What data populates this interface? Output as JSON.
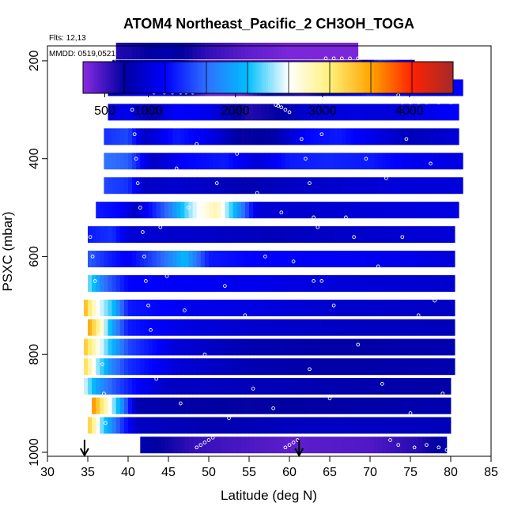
{
  "chart_data": {
    "type": "heatmap",
    "title": "ATOM4 Northeast_Pacific_2 CH3OH_TOGA",
    "flights_label": "Flts: 12,13",
    "dates_label": "MMDD: 0519,0521",
    "xlabel": "Latitude (deg N)",
    "ylabel": "PSXC (mbar)",
    "xlim": [
      30,
      85
    ],
    "ylim": [
      1000,
      100
    ],
    "x_ticks": [
      "30",
      "35",
      "40",
      "45",
      "50",
      "55",
      "60",
      "65",
      "70",
      "75",
      "80",
      "85"
    ],
    "y_ticks": [
      "200",
      "400",
      "600",
      "800",
      "1000"
    ],
    "colorbar": {
      "range": [
        250,
        4500
      ],
      "ticks": [
        "500",
        "1000",
        "2000",
        "3000",
        "4000"
      ],
      "colors": [
        "#8a2be2",
        "#0000a0",
        "#0000ff",
        "#2f6fff",
        "#00bfff",
        "#ffffff",
        "#fff07a",
        "#ffa500",
        "#ff2200",
        "#a52a2a"
      ]
    },
    "flight_start_markers": [
      34.6,
      61.2
    ],
    "rows": [
      {
        "p": 985,
        "lat0": 41.5,
        "lat1": 79.5,
        "stops": [
          [
            41.5,
            800
          ],
          [
            48,
            550
          ],
          [
            60,
            400
          ],
          [
            70,
            450
          ],
          [
            76,
            600
          ],
          [
            79.5,
            800
          ]
        ]
      },
      {
        "p": 945,
        "lat0": 35.0,
        "lat1": 80.0,
        "stops": [
          [
            35,
            3400
          ],
          [
            37,
            2200
          ],
          [
            39,
            1500
          ],
          [
            41,
            900
          ],
          [
            50,
            800
          ],
          [
            65,
            900
          ],
          [
            80,
            850
          ]
        ]
      },
      {
        "p": 905,
        "lat0": 35.5,
        "lat1": 80.0,
        "stops": [
          [
            35.5,
            3700
          ],
          [
            37,
            3000
          ],
          [
            39,
            2000
          ],
          [
            41,
            800
          ],
          [
            55,
            700
          ],
          [
            65,
            750
          ],
          [
            80,
            800
          ]
        ]
      },
      {
        "p": 865,
        "lat0": 34.5,
        "lat1": 80.0,
        "stops": [
          [
            34.5,
            2600
          ],
          [
            36,
            2000
          ],
          [
            38,
            1600
          ],
          [
            41,
            1200
          ],
          [
            45,
            900
          ],
          [
            55,
            850
          ],
          [
            65,
            800
          ],
          [
            80,
            750
          ]
        ]
      },
      {
        "p": 825,
        "lat0": 34.5,
        "lat1": 80.5,
        "stops": [
          [
            34.5,
            3300
          ],
          [
            36,
            2500
          ],
          [
            38,
            1800
          ],
          [
            40,
            1400
          ],
          [
            46,
            1000
          ],
          [
            56,
            800
          ],
          [
            66,
            750
          ],
          [
            80.5,
            800
          ]
        ]
      },
      {
        "p": 785,
        "lat0": 34.5,
        "lat1": 80.5,
        "stops": [
          [
            34.5,
            3400
          ],
          [
            36,
            2800
          ],
          [
            38,
            2100
          ],
          [
            40,
            1500
          ],
          [
            46,
            1000
          ],
          [
            55,
            800
          ],
          [
            66,
            750
          ],
          [
            80.5,
            800
          ]
        ]
      },
      {
        "p": 745,
        "lat0": 35.0,
        "lat1": 80.5,
        "stops": [
          [
            35,
            3600
          ],
          [
            36.5,
            2900
          ],
          [
            38,
            2000
          ],
          [
            40,
            1300
          ],
          [
            47,
            1050
          ],
          [
            55,
            950
          ],
          [
            66,
            900
          ],
          [
            80.5,
            850
          ]
        ]
      },
      {
        "p": 705,
        "lat0": 34.5,
        "lat1": 80.5,
        "stops": [
          [
            34.5,
            3500
          ],
          [
            36,
            2700
          ],
          [
            38,
            2200
          ],
          [
            40,
            1300
          ],
          [
            48,
            1100
          ],
          [
            56,
            1050
          ],
          [
            66,
            950
          ],
          [
            80.5,
            900
          ]
        ]
      },
      {
        "p": 655,
        "lat0": 35.0,
        "lat1": 80.5,
        "stops": [
          [
            35,
            2400
          ],
          [
            37,
            1700
          ],
          [
            40,
            1200
          ],
          [
            48,
            1150
          ],
          [
            56,
            1100
          ],
          [
            66,
            1000
          ],
          [
            80.5,
            950
          ]
        ]
      },
      {
        "p": 605,
        "lat0": 35.0,
        "lat1": 80.5,
        "stops": [
          [
            35,
            1600
          ],
          [
            38,
            1300
          ],
          [
            40,
            1150
          ],
          [
            44,
            1600
          ],
          [
            47,
            2100
          ],
          [
            50,
            1300
          ],
          [
            55,
            1200
          ],
          [
            65,
            1150
          ],
          [
            75,
            1100
          ],
          [
            80.5,
            1000
          ]
        ]
      },
      {
        "p": 555,
        "lat0": 35.0,
        "lat1": 80.5,
        "stops": [
          [
            35,
            1300
          ],
          [
            38,
            1400
          ],
          [
            40,
            1000
          ],
          [
            45,
            950
          ],
          [
            52,
            900
          ],
          [
            58,
            850
          ],
          [
            64,
            900
          ],
          [
            72,
            950
          ],
          [
            80.5,
            1000
          ]
        ]
      },
      {
        "p": 505,
        "lat0": 36.0,
        "lat1": 81.0,
        "stops": [
          [
            36,
            1300
          ],
          [
            39,
            1200
          ],
          [
            41,
            900
          ],
          [
            45,
            1700
          ],
          [
            48,
            2500
          ],
          [
            51,
            2900
          ],
          [
            54,
            1800
          ],
          [
            56,
            1000
          ],
          [
            62,
            950
          ],
          [
            70,
            1000
          ],
          [
            81,
            1050
          ]
        ]
      },
      {
        "p": 455,
        "lat0": 37.0,
        "lat1": 81.5,
        "stops": [
          [
            37,
            1500
          ],
          [
            40,
            1400
          ],
          [
            42,
            900
          ],
          [
            46,
            950
          ],
          [
            50,
            900
          ],
          [
            55,
            800
          ],
          [
            60,
            900
          ],
          [
            66,
            950
          ],
          [
            72,
            1000
          ],
          [
            81.5,
            1000
          ]
        ]
      },
      {
        "p": 405,
        "lat0": 37.0,
        "lat1": 81.5,
        "stops": [
          [
            37,
            1700
          ],
          [
            40,
            1600
          ],
          [
            43,
            900
          ],
          [
            47,
            1200
          ],
          [
            52,
            1300
          ],
          [
            56,
            1000
          ],
          [
            60,
            1300
          ],
          [
            65,
            1350
          ],
          [
            70,
            1300
          ],
          [
            76,
            1100
          ],
          [
            81.5,
            1050
          ]
        ]
      },
      {
        "p": 355,
        "lat0": 37.0,
        "lat1": 81.0,
        "stops": [
          [
            37,
            1400
          ],
          [
            40,
            1500
          ],
          [
            42,
            900
          ],
          [
            46,
            1300
          ],
          [
            50,
            1100
          ],
          [
            54,
            700
          ],
          [
            58,
            750
          ],
          [
            62,
            1200
          ],
          [
            66,
            1300
          ],
          [
            70,
            1100
          ],
          [
            75,
            850
          ],
          [
            81,
            1000
          ]
        ]
      },
      {
        "p": 305,
        "lat0": 37.5,
        "lat1": 81.0,
        "stops": [
          [
            37.5,
            1000
          ],
          [
            40,
            1100
          ],
          [
            43,
            800
          ],
          [
            46,
            1200
          ],
          [
            50,
            1100
          ],
          [
            55,
            600
          ],
          [
            58,
            700
          ],
          [
            63,
            1000
          ],
          [
            68,
            1050
          ],
          [
            73,
            1000
          ],
          [
            77,
            1100
          ],
          [
            81,
            1200
          ]
        ]
      },
      {
        "p": 255,
        "lat0": 37.5,
        "lat1": 81.5,
        "stops": [
          [
            37.5,
            800
          ],
          [
            40,
            1000
          ],
          [
            42,
            1200
          ],
          [
            45,
            1000
          ],
          [
            50,
            350
          ],
          [
            54,
            350
          ],
          [
            57,
            700
          ],
          [
            62,
            600
          ],
          [
            66,
            900
          ],
          [
            70,
            1300
          ],
          [
            74,
            1100
          ],
          [
            78,
            1000
          ],
          [
            81.5,
            1200
          ]
        ]
      },
      {
        "p": 215,
        "lat0": 38.0,
        "lat1": 75.5,
        "stops": [
          [
            38,
            800
          ],
          [
            41,
            1000
          ],
          [
            45,
            900
          ],
          [
            49,
            350
          ],
          [
            55,
            350
          ],
          [
            60,
            450
          ],
          [
            66,
            400
          ],
          [
            69,
            600
          ],
          [
            71,
            1500
          ],
          [
            73,
            1300
          ],
          [
            75.5,
            900
          ]
        ]
      },
      {
        "p": 180,
        "lat0": 38.5,
        "lat1": 68.5,
        "stops": [
          [
            38.5,
            600
          ],
          [
            42,
            700
          ],
          [
            45,
            800
          ],
          [
            50,
            550
          ],
          [
            55,
            400
          ],
          [
            60,
            300
          ],
          [
            68.5,
            300
          ]
        ]
      }
    ],
    "sample_tracks": [
      {
        "lat": [
          38.2,
          39.2,
          40.0,
          40.6,
          41.3,
          41.8,
          42.3,
          42.8,
          43.2
        ],
        "p": [
          200,
          205,
          210,
          220,
          230,
          240,
          250,
          260,
          265
        ]
      },
      {
        "lat": [
          44.5,
          45.5,
          46.5,
          47.2,
          48.0
        ],
        "p": [
          265,
          265,
          265,
          265,
          265
        ]
      },
      {
        "lat": [
          58.3,
          58.6,
          59.0,
          59.5,
          60.0
        ],
        "p": [
          290,
          292,
          295,
          300,
          305
        ]
      },
      {
        "lat": [
          64.5,
          65.5,
          66.5,
          67.5,
          68.5
        ],
        "p": [
          195,
          195,
          195,
          195,
          195
        ]
      },
      {
        "lat": [
          68.8,
          69.3,
          69.8,
          70.5,
          71.5,
          72.5,
          73.5
        ],
        "p": [
          215,
          230,
          240,
          245,
          250,
          260,
          270
        ]
      },
      {
        "lat": [
          74.0,
          75.0,
          76.0,
          77.0,
          78.5,
          80.0,
          81.5
        ],
        "p": [
          285,
          285,
          285,
          285,
          285,
          285,
          285
        ]
      },
      {
        "lat": [
          40.5,
          40.8,
          41.0,
          41.2,
          41.5,
          41.8,
          42.0,
          42.2,
          42.5,
          42.8
        ],
        "p": [
          300,
          350,
          400,
          450,
          500,
          550,
          600,
          650,
          700,
          750
        ]
      },
      {
        "lat": [
          35.3,
          35.6,
          35.9,
          36.2,
          36.5,
          36.8,
          37.0,
          37.2
        ],
        "p": [
          560,
          600,
          650,
          700,
          760,
          820,
          880,
          940
        ]
      },
      {
        "lat": [
          61.0,
          61.5,
          62.0,
          62.5,
          63.0,
          63.5,
          64.0
        ],
        "p": [
          330,
          360,
          400,
          450,
          520,
          580,
          650
        ]
      },
      {
        "lat": [
          48.5,
          49.0,
          49.5,
          50.0,
          50.5
        ],
        "p": [
          990,
          985,
          980,
          975,
          970
        ]
      },
      {
        "lat": [
          59.5,
          60.0,
          60.5,
          61.0
        ],
        "p": [
          990,
          985,
          980,
          975
        ]
      },
      {
        "lat": [
          72.5,
          73.5,
          75.5,
          77.0,
          78.5,
          79.5
        ],
        "p": [
          975,
          985,
          990,
          985,
          990,
          995
        ]
      },
      {
        "lat": [
          44.8,
          47.0,
          52.0,
          54.5,
          57.0,
          60.5,
          63.0,
          65.5,
          68.0,
          71.0,
          73.5,
          76.0,
          78.0
        ],
        "p": [
          640,
          710,
          660,
          720,
          600,
          610,
          650,
          700,
          560,
          620,
          580,
          720,
          690
        ]
      },
      {
        "lat": [
          46.0,
          48.5,
          51.0,
          53.5,
          56.0,
          58.5,
          61.5,
          64.0,
          66.5,
          69.5,
          72.0,
          74.5,
          77.5
        ],
        "p": [
          420,
          370,
          450,
          390,
          470,
          330,
          430,
          350,
          480,
          400,
          440,
          360,
          410
        ]
      },
      {
        "lat": [
          43.5,
          46.5,
          49.5,
          52.5,
          55.5,
          58.0,
          62.5,
          65.0,
          68.5,
          71.5,
          75.0,
          79.0
        ],
        "p": [
          850,
          900,
          800,
          930,
          870,
          910,
          830,
          890,
          780,
          860,
          920,
          880
        ]
      },
      {
        "lat": [
          44.0,
          47.5,
          51.5,
          55.0,
          59.0,
          63.5,
          67.0,
          70.0,
          74.0,
          78.0
        ],
        "p": [
          540,
          500,
          530,
          580,
          510,
          540,
          520,
          480,
          560,
          530
        ]
      }
    ]
  }
}
